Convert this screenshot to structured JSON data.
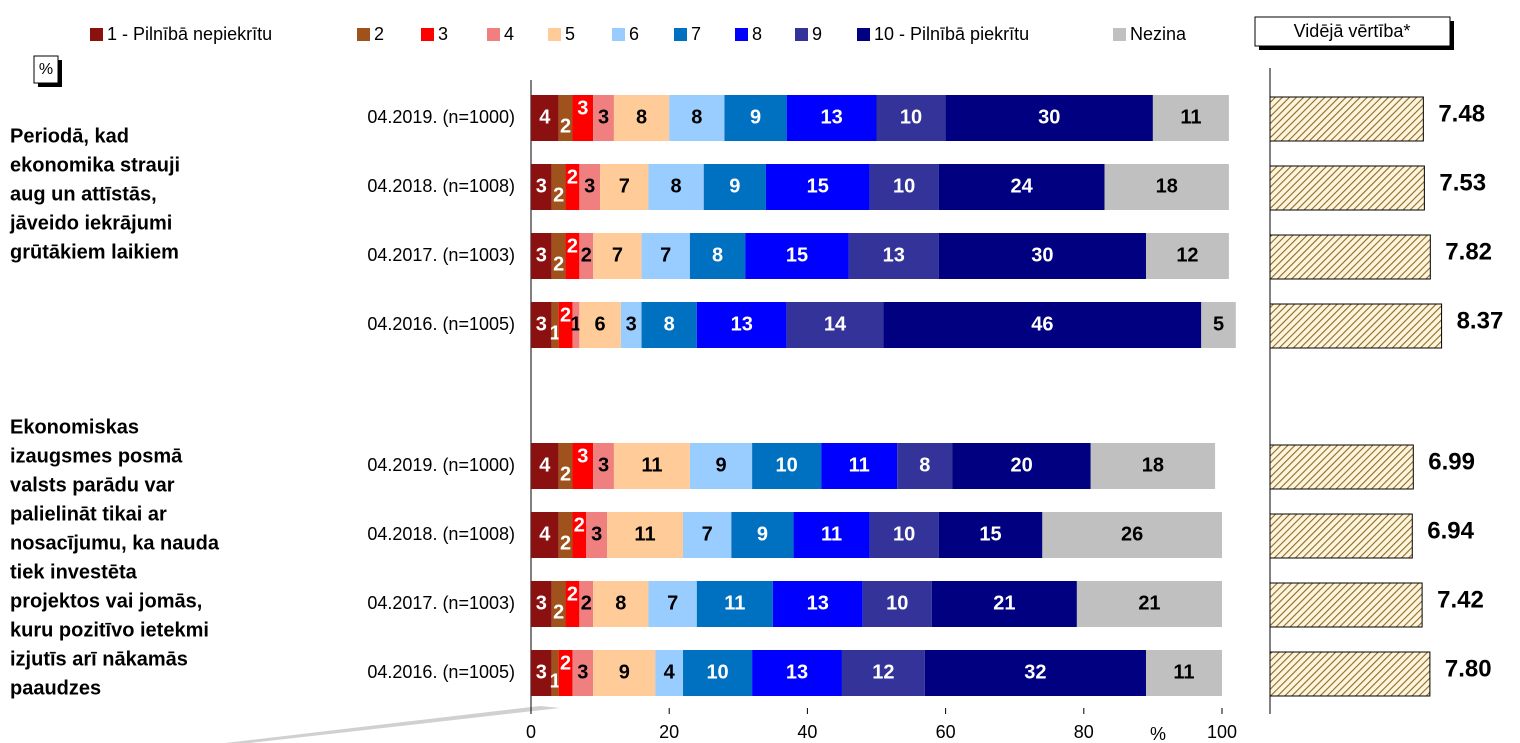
{
  "chart_data": [
    {
      "type": "stacked_bar",
      "unit_label": "%",
      "xlabel": "%",
      "xlim": [
        0,
        100
      ],
      "xticks": [
        0,
        20,
        40,
        60,
        80,
        100
      ],
      "groups": [
        {
          "label": [
            "Periodā, kad",
            "ekonomika strauji",
            "aug un attīstās,",
            "jāveido iekrājumi",
            "grūtākiem laikiem"
          ]
        },
        {
          "label": [
            "Ekonomiskas",
            "izaugsmes posmā",
            "valsts parādu var",
            "palielināt tikai ar",
            "nosacījumu, ka nauda",
            "tiek investēta",
            "projektos vai jomās,",
            "kuru pozitīvo ietekmi",
            "izjutīs arī nākamās",
            "paaudzes"
          ]
        }
      ],
      "categories": [
        "04.2019. (n=1000)",
        "04.2018. (n=1008)",
        "04.2017. (n=1003)",
        "04.2016. (n=1005)",
        "04.2019. (n=1000)",
        "04.2018. (n=1008)",
        "04.2017. (n=1003)",
        "04.2016. (n=1005)"
      ],
      "series": [
        {
          "name": "1 - Pilnībā nepiekrītu",
          "color": "#8b1010",
          "values": [
            4,
            3,
            3,
            3,
            4,
            4,
            3,
            3
          ]
        },
        {
          "name": "2",
          "color": "#a0521c",
          "values": [
            2,
            2,
            2,
            1,
            2,
            2,
            2,
            1
          ]
        },
        {
          "name": "3",
          "color": "#ff0000",
          "values": [
            3,
            2,
            2,
            2,
            3,
            2,
            2,
            2
          ]
        },
        {
          "name": "4",
          "color": "#f08080",
          "values": [
            3,
            3,
            2,
            1,
            3,
            3,
            2,
            3
          ]
        },
        {
          "name": "5",
          "color": "#ffcc99",
          "values": [
            8,
            7,
            7,
            6,
            11,
            11,
            8,
            9
          ]
        },
        {
          "name": "6",
          "color": "#99ccff",
          "values": [
            8,
            8,
            7,
            3,
            9,
            7,
            7,
            4
          ]
        },
        {
          "name": "7",
          "color": "#0070c0",
          "values": [
            9,
            9,
            8,
            8,
            10,
            9,
            11,
            10
          ]
        },
        {
          "name": "8",
          "color": "#0000ff",
          "values": [
            13,
            15,
            15,
            13,
            11,
            11,
            13,
            13
          ]
        },
        {
          "name": "9",
          "color": "#333399",
          "values": [
            10,
            10,
            13,
            14,
            8,
            10,
            10,
            12
          ]
        },
        {
          "name": "10 - Pilnībā piekrītu",
          "color": "#000080",
          "values": [
            30,
            24,
            30,
            46,
            20,
            15,
            21,
            32
          ]
        },
        {
          "name": "Nezina",
          "color": "#c0c0c0",
          "values": [
            11,
            18,
            12,
            5,
            18,
            26,
            21,
            11
          ]
        }
      ]
    },
    {
      "type": "bar",
      "title": "Vidējā vērtība*",
      "xlim": [
        0,
        10
      ],
      "values": [
        7.48,
        7.53,
        7.82,
        8.37,
        6.99,
        6.94,
        7.42,
        7.8
      ],
      "value_labels": [
        "7.48",
        "7.53",
        "7.82",
        "8.37",
        "6.99",
        "6.94",
        "7.42",
        "7.80"
      ]
    }
  ]
}
